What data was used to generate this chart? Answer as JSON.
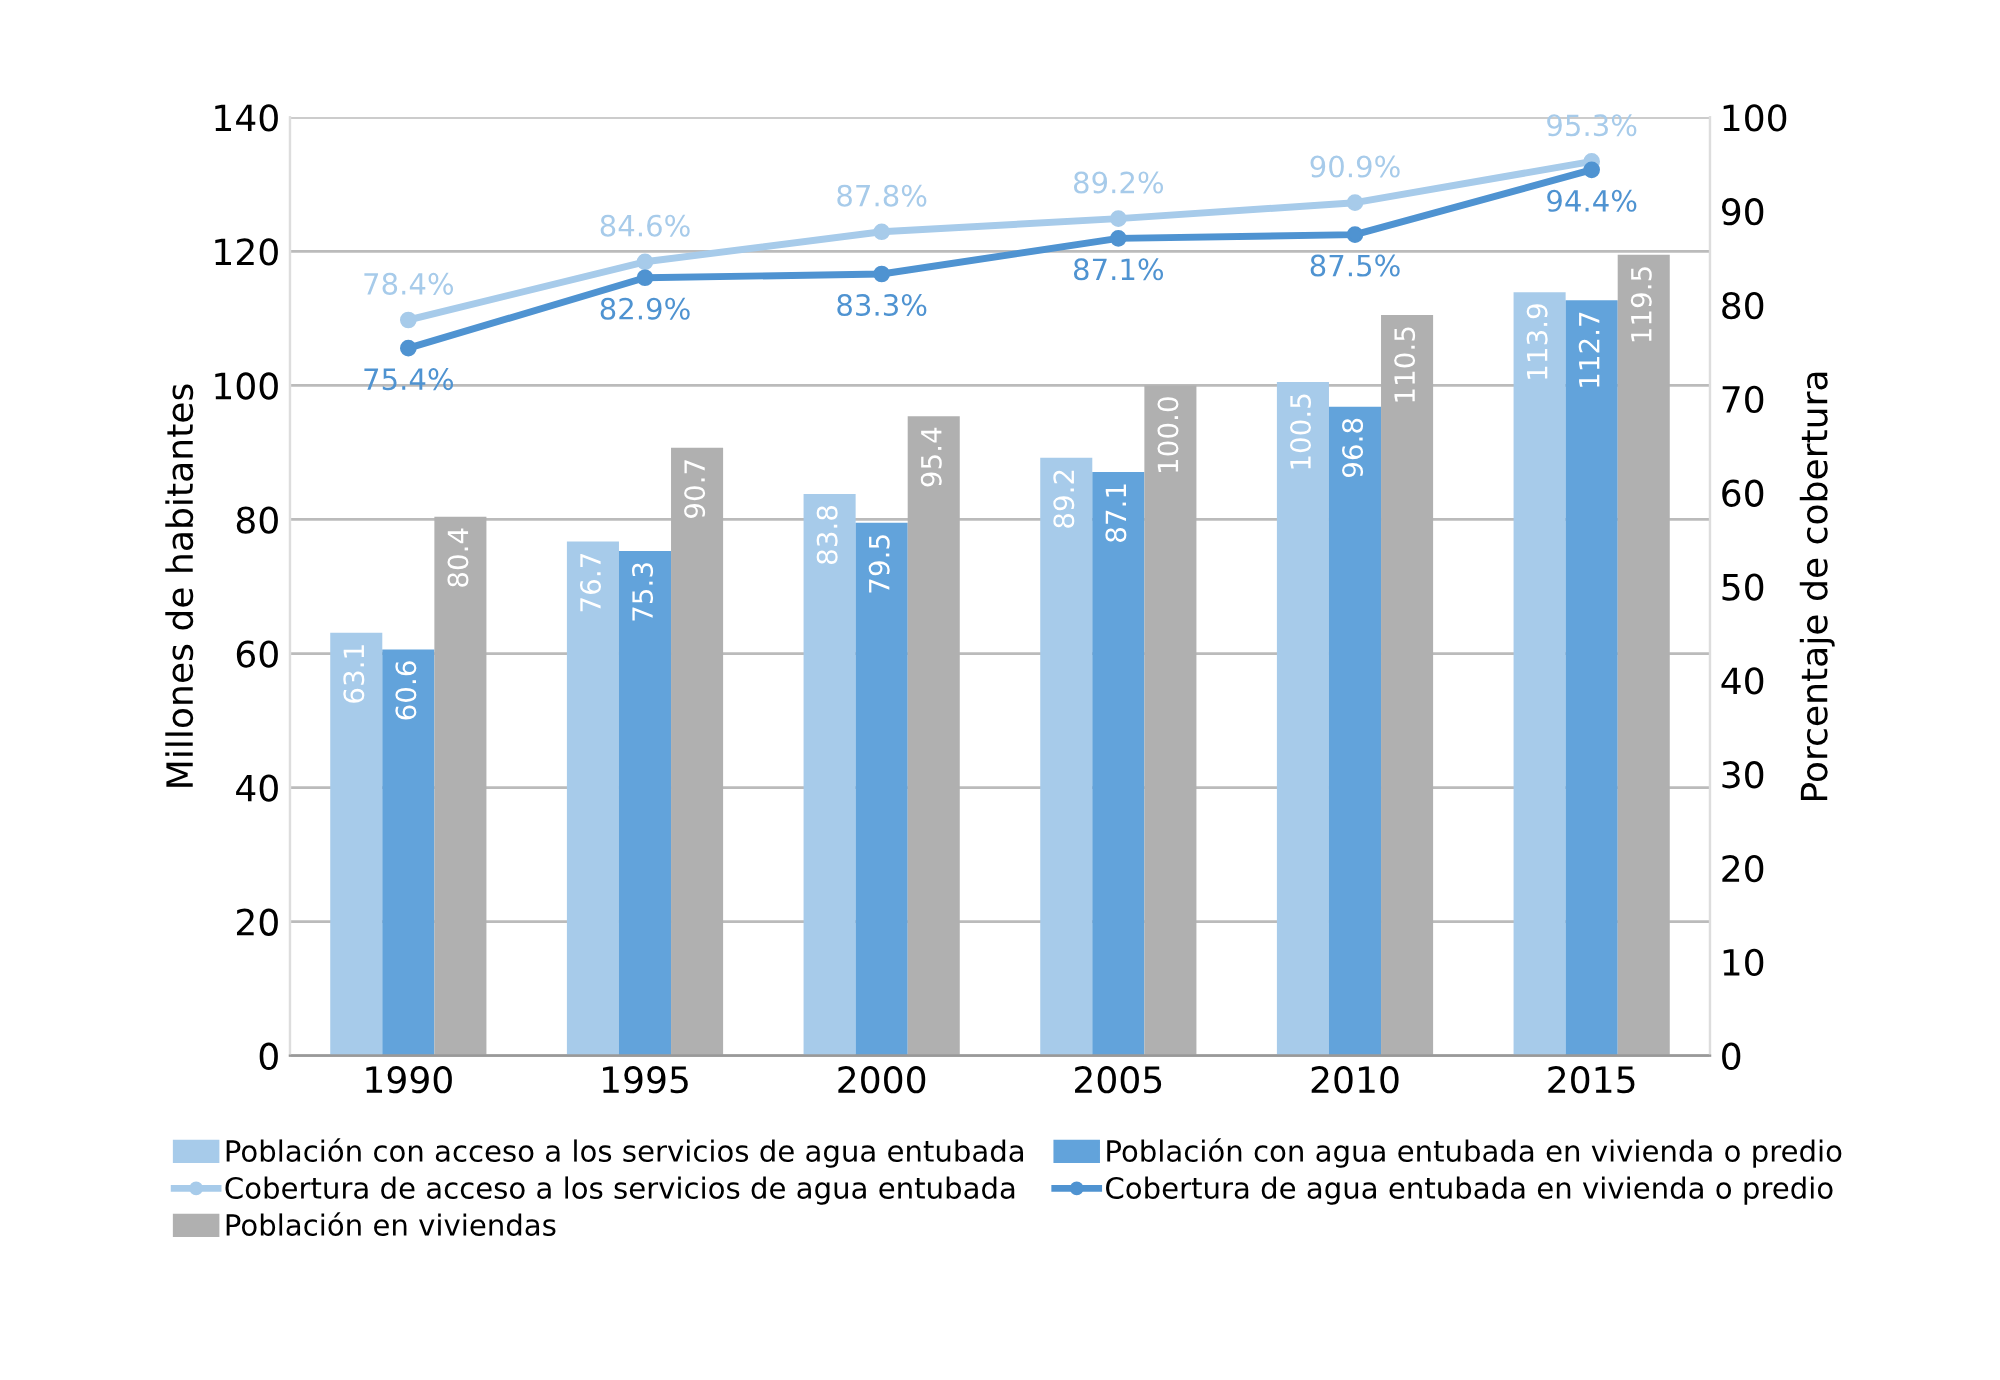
{
  "chart_data": {
    "type": "bar",
    "ylabel": "Millones de habitantes",
    "y2label": "Porcentaje de cobertura",
    "categories": [
      "1990",
      "1995",
      "2000",
      "2005",
      "2010",
      "2015"
    ],
    "series": [
      {
        "name": "Población con acceso a los servicios de agua entubada",
        "color": "#a7cbea",
        "values": [
          63.1,
          76.7,
          83.8,
          89.2,
          100.5,
          113.9
        ],
        "value_labels": [
          "63.1",
          "76.7",
          "83.8",
          "89.2",
          "100.5",
          "113.9"
        ]
      },
      {
        "name": "Población con agua entubada en vivienda o predio",
        "color": "#62a3db",
        "values": [
          60.6,
          75.3,
          79.5,
          87.1,
          96.8,
          112.7
        ],
        "value_labels": [
          "60.6",
          "75.3",
          "79.5",
          "87.1",
          "96.8",
          "112.7"
        ]
      },
      {
        "name": "Cobertura de acceso a los servicios de agua entubada",
        "type": "line",
        "axis": "y2",
        "color": "#a7cbea",
        "values": [
          78.4,
          84.6,
          87.8,
          89.2,
          90.9,
          95.3
        ],
        "value_labels": [
          "78.4%",
          "84.6%",
          "87.8%",
          "89.2%",
          "90.9%",
          "95.3%"
        ]
      },
      {
        "name": "Cobertura de agua entubada en vivienda o predio",
        "type": "line",
        "axis": "y2",
        "color": "#4f93d1",
        "values": [
          75.4,
          82.9,
          83.3,
          87.1,
          87.5,
          94.4
        ],
        "value_labels": [
          "75.4%",
          "82.9%",
          "83.3%",
          "87.1%",
          "87.5%",
          "94.4%"
        ]
      },
      {
        "name": "Población en viviendas",
        "color": "#b0b0b0",
        "values": [
          80.4,
          90.7,
          95.4,
          100.0,
          110.5,
          119.5
        ],
        "value_labels": [
          "80.4",
          "90.7",
          "95.4",
          "100.0",
          "110.5",
          "119.5"
        ]
      }
    ],
    "ylim": [
      0,
      140
    ],
    "yticks": [
      0,
      20,
      40,
      60,
      80,
      100,
      120,
      140
    ],
    "y2lim": [
      0,
      100
    ],
    "y2ticks": [
      0,
      10,
      20,
      30,
      40,
      50,
      60,
      70,
      80,
      90,
      100
    ],
    "grid": "y",
    "legend": "bottom",
    "marker": "circle"
  }
}
